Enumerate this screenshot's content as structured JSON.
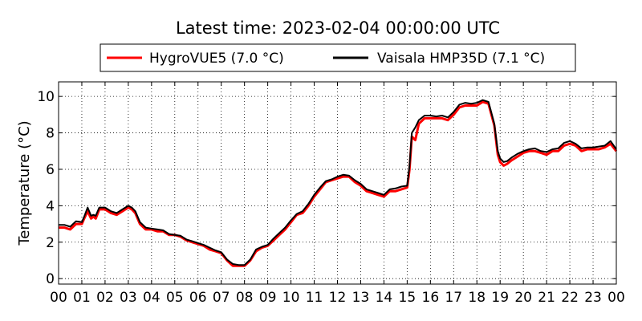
{
  "chart_data": {
    "type": "line",
    "title": "Latest time: 2023-02-04 00:00:00 UTC",
    "ylabel": "Temperature (°C)",
    "xlabel": "",
    "xlim": [
      0,
      24
    ],
    "ylim": [
      -0.3,
      10.8
    ],
    "x_ticks": [
      "00",
      "01",
      "02",
      "03",
      "04",
      "05",
      "06",
      "07",
      "08",
      "09",
      "10",
      "11",
      "12",
      "13",
      "14",
      "15",
      "16",
      "17",
      "18",
      "19",
      "20",
      "21",
      "22",
      "23",
      "00"
    ],
    "y_ticks": [
      0,
      2,
      4,
      6,
      8,
      10
    ],
    "grid": true,
    "legend_position": "top",
    "series": [
      {
        "name": "HygroVUE5 (7.0 °C)",
        "color": "#ff0000",
        "x": [
          0,
          0.25,
          0.5,
          0.75,
          1.0,
          1.1,
          1.25,
          1.4,
          1.5,
          1.6,
          1.75,
          2.0,
          2.25,
          2.5,
          2.75,
          3.0,
          3.15,
          3.3,
          3.5,
          3.75,
          4.0,
          4.25,
          4.5,
          4.75,
          5.0,
          5.25,
          5.5,
          5.75,
          6.0,
          6.25,
          6.5,
          6.75,
          7.0,
          7.25,
          7.5,
          7.75,
          8.0,
          8.25,
          8.5,
          8.75,
          9.0,
          9.25,
          9.5,
          9.75,
          10.0,
          10.25,
          10.5,
          10.75,
          11.0,
          11.25,
          11.5,
          11.75,
          12.0,
          12.25,
          12.5,
          12.75,
          13.0,
          13.25,
          13.5,
          13.75,
          14.0,
          14.25,
          14.5,
          14.75,
          15.0,
          15.1,
          15.2,
          15.35,
          15.5,
          15.75,
          16.0,
          16.25,
          16.5,
          16.75,
          17.0,
          17.25,
          17.5,
          17.75,
          18.0,
          18.25,
          18.5,
          18.75,
          18.9,
          19.0,
          19.15,
          19.3,
          19.5,
          19.75,
          20.0,
          20.25,
          20.5,
          20.75,
          21.0,
          21.25,
          21.5,
          21.75,
          22.0,
          22.25,
          22.5,
          22.75,
          23.0,
          23.25,
          23.5,
          23.75,
          24.0
        ],
        "values": [
          2.8,
          2.8,
          2.7,
          3.0,
          3.0,
          3.3,
          3.7,
          3.3,
          3.4,
          3.3,
          3.8,
          3.8,
          3.6,
          3.5,
          3.7,
          3.9,
          3.8,
          3.6,
          3.0,
          2.7,
          2.7,
          2.6,
          2.6,
          2.4,
          2.4,
          2.3,
          2.1,
          2.0,
          1.9,
          1.8,
          1.6,
          1.5,
          1.4,
          1.0,
          0.7,
          0.7,
          0.7,
          1.0,
          1.5,
          1.7,
          1.8,
          2.1,
          2.4,
          2.7,
          3.1,
          3.5,
          3.6,
          4.0,
          4.5,
          4.9,
          5.3,
          5.4,
          5.5,
          5.6,
          5.6,
          5.3,
          5.1,
          4.8,
          4.7,
          4.6,
          4.5,
          4.8,
          4.8,
          4.9,
          5.0,
          6.0,
          7.8,
          7.6,
          8.5,
          8.8,
          8.8,
          8.8,
          8.8,
          8.7,
          9.0,
          9.4,
          9.5,
          9.5,
          9.5,
          9.7,
          9.6,
          8.4,
          6.8,
          6.4,
          6.2,
          6.3,
          6.5,
          6.7,
          6.9,
          7.0,
          7.0,
          6.9,
          6.8,
          7.0,
          7.0,
          7.3,
          7.4,
          7.3,
          7.0,
          7.1,
          7.1,
          7.1,
          7.2,
          7.4,
          7.0
        ]
      },
      {
        "name": "Vaisala HMP35D (7.1 °C)",
        "color": "#000000",
        "x": [
          0,
          0.25,
          0.5,
          0.75,
          1.0,
          1.1,
          1.25,
          1.4,
          1.5,
          1.6,
          1.75,
          2.0,
          2.25,
          2.5,
          2.75,
          3.0,
          3.15,
          3.3,
          3.5,
          3.75,
          4.0,
          4.25,
          4.5,
          4.75,
          5.0,
          5.25,
          5.5,
          5.75,
          6.0,
          6.25,
          6.5,
          6.75,
          7.0,
          7.25,
          7.5,
          7.75,
          8.0,
          8.25,
          8.5,
          8.75,
          9.0,
          9.25,
          9.5,
          9.75,
          10.0,
          10.25,
          10.5,
          10.75,
          11.0,
          11.25,
          11.5,
          11.75,
          12.0,
          12.25,
          12.5,
          12.75,
          13.0,
          13.25,
          13.5,
          13.75,
          14.0,
          14.25,
          14.5,
          14.75,
          15.0,
          15.1,
          15.2,
          15.35,
          15.5,
          15.75,
          16.0,
          16.25,
          16.5,
          16.75,
          17.0,
          17.25,
          17.5,
          17.75,
          18.0,
          18.25,
          18.5,
          18.75,
          18.9,
          19.0,
          19.15,
          19.3,
          19.5,
          19.75,
          20.0,
          20.25,
          20.5,
          20.75,
          21.0,
          21.25,
          21.5,
          21.75,
          22.0,
          22.25,
          22.5,
          22.75,
          23.0,
          23.25,
          23.5,
          23.75,
          24.0
        ],
        "values": [
          2.95,
          2.95,
          2.85,
          3.15,
          3.1,
          3.4,
          3.9,
          3.45,
          3.5,
          3.45,
          3.9,
          3.9,
          3.7,
          3.6,
          3.8,
          4.0,
          3.9,
          3.7,
          3.1,
          2.8,
          2.75,
          2.7,
          2.65,
          2.45,
          2.4,
          2.35,
          2.15,
          2.05,
          1.95,
          1.85,
          1.7,
          1.55,
          1.45,
          1.05,
          0.8,
          0.75,
          0.75,
          1.05,
          1.6,
          1.75,
          1.85,
          2.2,
          2.5,
          2.8,
          3.2,
          3.55,
          3.7,
          4.1,
          4.6,
          5.0,
          5.35,
          5.45,
          5.6,
          5.7,
          5.65,
          5.4,
          5.2,
          4.9,
          4.8,
          4.7,
          4.6,
          4.9,
          4.95,
          5.05,
          5.1,
          6.2,
          8.0,
          8.3,
          8.7,
          8.95,
          8.95,
          8.9,
          8.95,
          8.85,
          9.15,
          9.55,
          9.65,
          9.6,
          9.65,
          9.8,
          9.7,
          8.5,
          7.0,
          6.6,
          6.4,
          6.45,
          6.65,
          6.85,
          7.0,
          7.1,
          7.15,
          7.0,
          6.95,
          7.1,
          7.15,
          7.45,
          7.55,
          7.4,
          7.15,
          7.2,
          7.2,
          7.25,
          7.3,
          7.55,
          7.1
        ]
      }
    ]
  }
}
